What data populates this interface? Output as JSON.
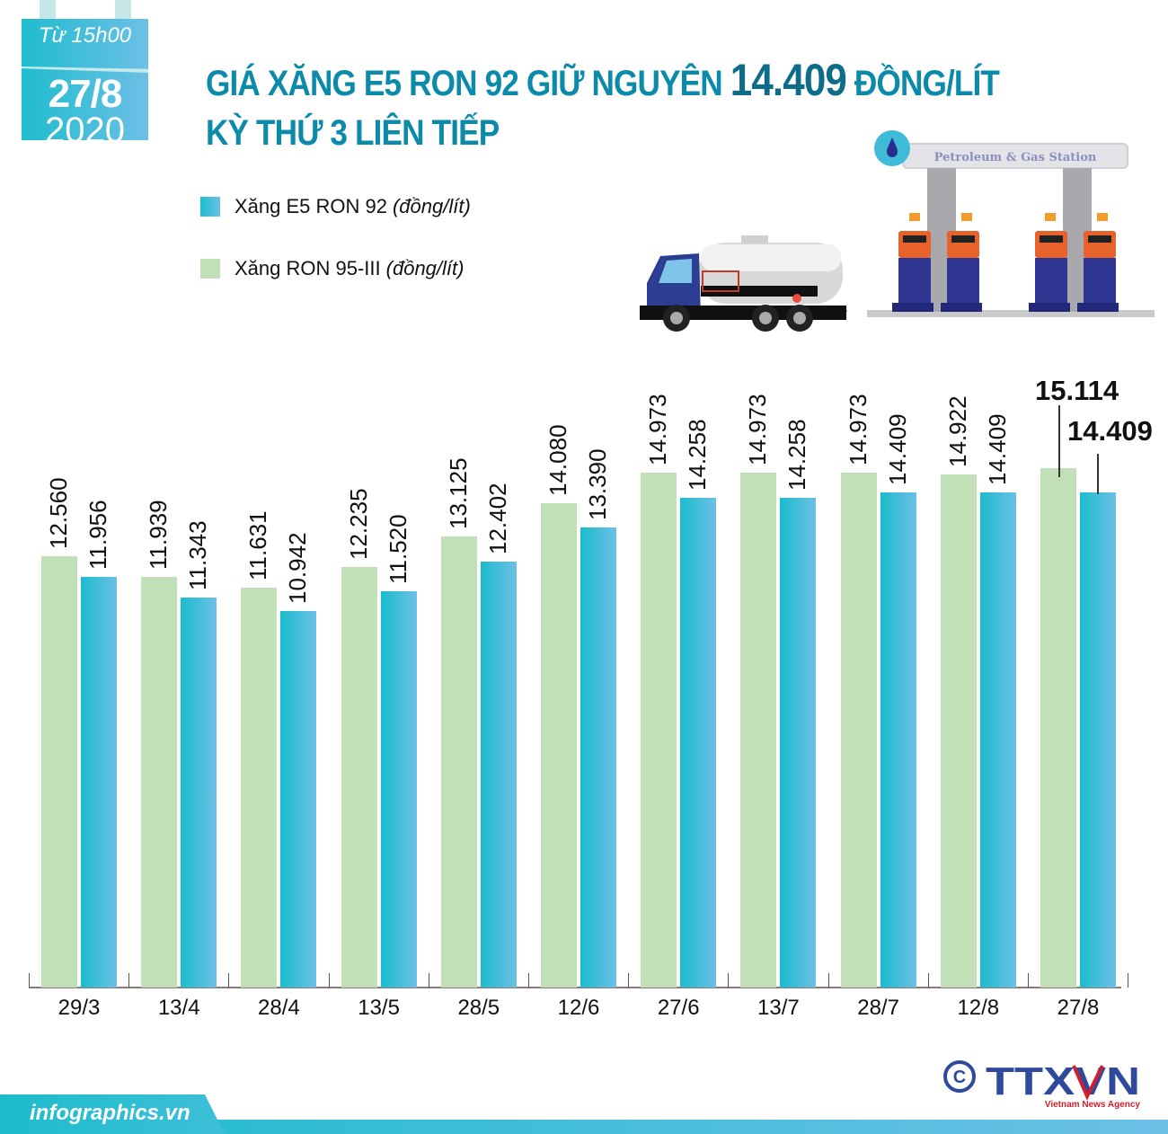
{
  "badge": {
    "from_label": "Từ 15h00",
    "date": "27/8",
    "year": "2020"
  },
  "header": {
    "title_line1_pre": "GIÁ XĂNG E5 RON 92 GIỮ NGUYÊN ",
    "title_line1_value": "14.409",
    "title_line1_post": " ĐỒNG/LÍT",
    "title_line2": "KỲ THỨ 3 LIÊN TIẾP"
  },
  "legend": {
    "items": [
      {
        "label": "Xăng E5 RON 92",
        "unit": "(đồng/lít)",
        "color": "#1bbccd"
      },
      {
        "label": "Xăng RON 95-III",
        "unit": "(đồng/lít)",
        "color": "#c2e0b7"
      }
    ]
  },
  "illustration": {
    "station_sign": "Petroleum & Gas Station",
    "truck": "fuel-tanker-truck",
    "station": "gas-station-pumps"
  },
  "chart_data": {
    "type": "bar",
    "title": "GIÁ XĂNG E5 RON 92 GIỮ NGUYÊN 14.409 ĐỒNG/LÍT KỲ THỨ 3 LIÊN TIẾP",
    "xlabel": "",
    "ylabel": "đồng/lít",
    "categories": [
      "29/3",
      "13/4",
      "28/4",
      "13/5",
      "28/5",
      "12/6",
      "27/6",
      "13/7",
      "28/7",
      "12/8",
      "27/8"
    ],
    "series": [
      {
        "name": "Xăng RON 95-III (đồng/lít)",
        "color": "#c2e0b7",
        "values": [
          12560,
          11939,
          11631,
          12235,
          13125,
          14080,
          14973,
          14973,
          14973,
          14922,
          15114
        ],
        "labels": [
          "12.560",
          "11.939",
          "11.631",
          "12.235",
          "13.125",
          "14.080",
          "14.973",
          "14.973",
          "14.973",
          "14.922",
          "15.114"
        ]
      },
      {
        "name": "Xăng E5 RON 92 (đồng/lít)",
        "color": "#1bbccd",
        "values": [
          11956,
          11343,
          10942,
          11520,
          12402,
          13390,
          14258,
          14258,
          14409,
          14409,
          14409
        ],
        "labels": [
          "11.956",
          "11.343",
          "10.942",
          "11.520",
          "12.402",
          "13.390",
          "14.258",
          "14.258",
          "14.409",
          "14.409",
          "14.409"
        ]
      }
    ],
    "ylim": [
      0,
      16000
    ],
    "grid": false,
    "legend_position": "top-left",
    "highlight": {
      "category": "27/8",
      "values": [
        "15.114",
        "14.409"
      ]
    }
  },
  "footer": {
    "site": "infographics.vn",
    "copyright_symbol": "©",
    "agency_logo": "TTXVN",
    "agency_tagline": "Vietnam News Agency"
  }
}
